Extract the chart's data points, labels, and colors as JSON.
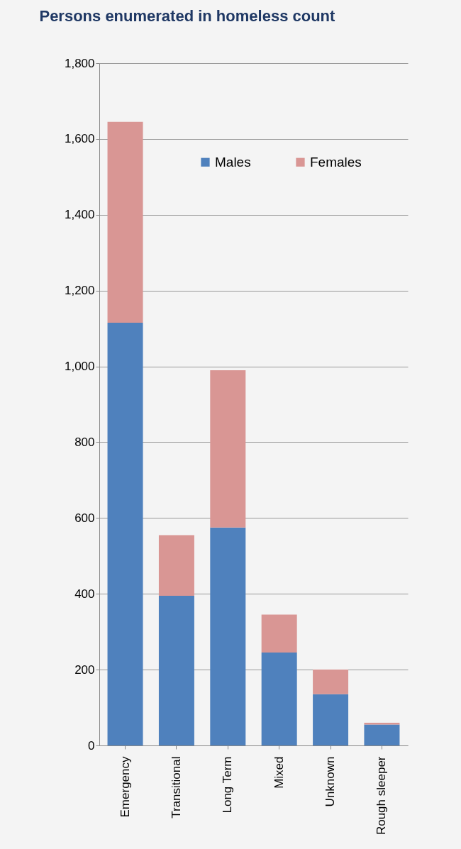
{
  "chart_data": {
    "type": "bar",
    "title": "Persons enumerated in homeless count",
    "categories": [
      "Emergency",
      "Transitional",
      "Long Term",
      "Mixed",
      "Unknown",
      "Rough sleeper"
    ],
    "series": [
      {
        "name": "Males",
        "color": "#4f81bd",
        "values": [
          1115,
          395,
          575,
          245,
          135,
          55
        ]
      },
      {
        "name": "Females",
        "color": "#d99694",
        "values": [
          530,
          160,
          415,
          100,
          65,
          5
        ]
      }
    ],
    "stacked": true,
    "ylim": [
      0,
      1800
    ],
    "yticks": [
      0,
      200,
      400,
      600,
      800,
      {
        "value": 1000,
        "label": "1,000"
      },
      {
        "value": 1200,
        "label": "1,200"
      },
      {
        "value": 1400,
        "label": "1,400"
      },
      {
        "value": 1600,
        "label": "1,600"
      },
      {
        "value": 1800,
        "label": "1,800"
      }
    ],
    "grid": "y",
    "legend": "top"
  }
}
